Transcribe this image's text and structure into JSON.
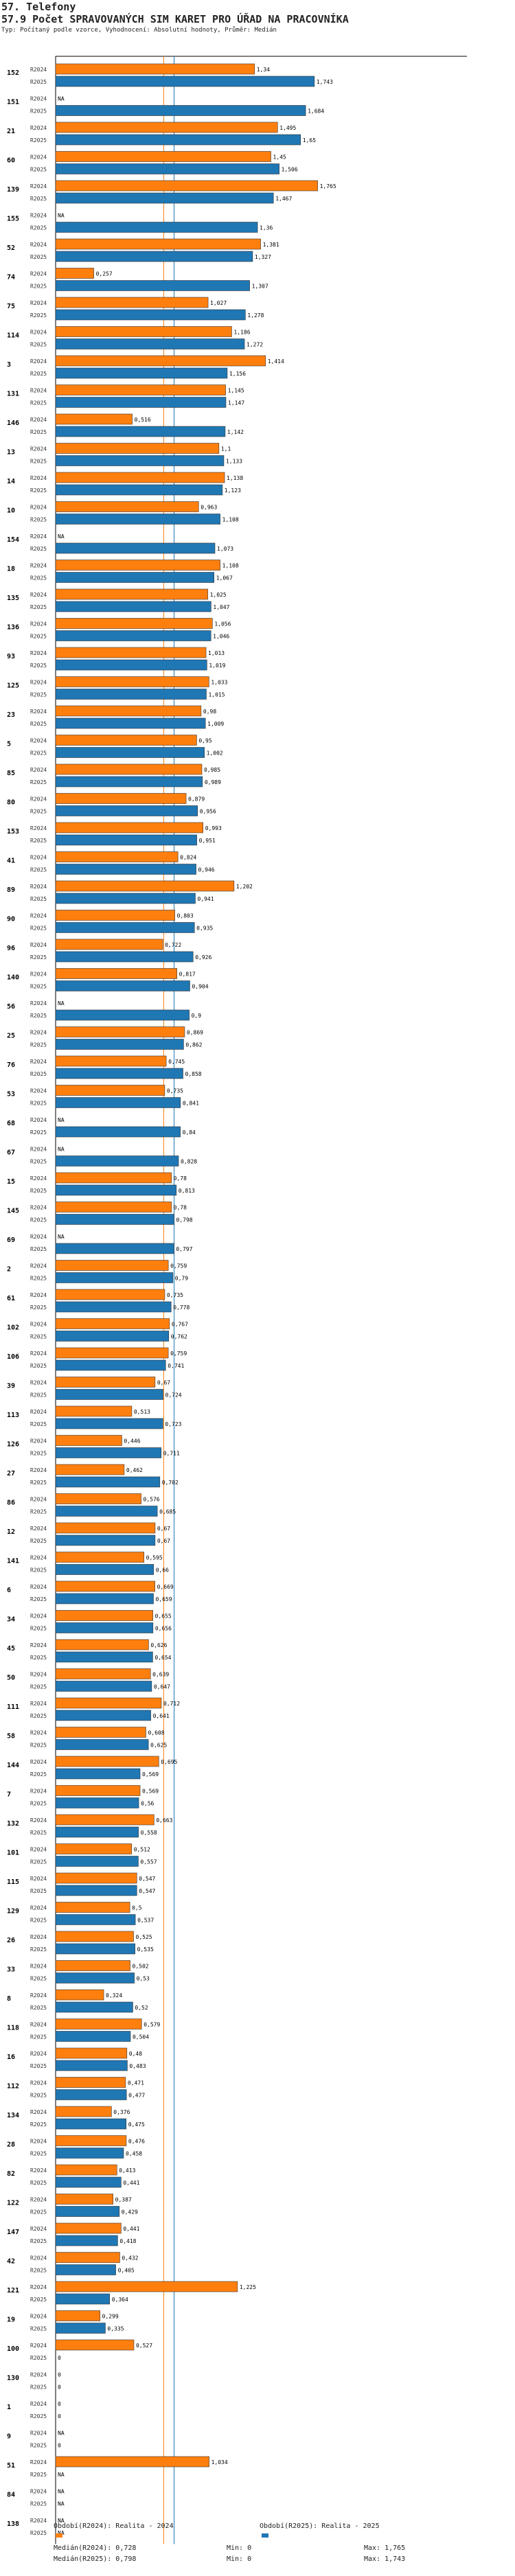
{
  "header": {
    "section": "57. Telefony",
    "title": "57.9 Počet SPRAVOVANÝCH SIM KARET PRO ÚŘAD NA PRACOVNÍKA",
    "subtitle": "Typ: Počítaný podle vzorce, Vyhodnocení: Absolutní hodnoty, Průměr: Medián"
  },
  "colors": {
    "r2024": "#ff7f0e",
    "r2025": "#1f77b4",
    "median2024": "#ff7f0e",
    "median2025": "#1f77b4"
  },
  "chart_data": {
    "type": "bar",
    "orientation": "horizontal",
    "na_label": "NA",
    "xlim": [
      0,
      1.85
    ],
    "series_labels": [
      "R2024",
      "R2025"
    ],
    "medians": {
      "r2024": 0.728,
      "r2025": 0.798
    },
    "rows": [
      {
        "id": "152",
        "r2024": 1.34,
        "r2025": 1.743
      },
      {
        "id": "151",
        "r2024": null,
        "r2025": 1.684
      },
      {
        "id": "21",
        "r2024": 1.495,
        "r2025": 1.65
      },
      {
        "id": "60",
        "r2024": 1.45,
        "r2025": 1.506
      },
      {
        "id": "139",
        "r2024": 1.765,
        "r2025": 1.467
      },
      {
        "id": "155",
        "r2024": null,
        "r2025": 1.36
      },
      {
        "id": "52",
        "r2024": 1.381,
        "r2025": 1.327
      },
      {
        "id": "74",
        "r2024": 0.257,
        "r2025": 1.307
      },
      {
        "id": "75",
        "r2024": 1.027,
        "r2025": 1.278
      },
      {
        "id": "114",
        "r2024": 1.186,
        "r2025": 1.272
      },
      {
        "id": "3",
        "r2024": 1.414,
        "r2025": 1.156
      },
      {
        "id": "131",
        "r2024": 1.145,
        "r2025": 1.147
      },
      {
        "id": "146",
        "r2024": 0.516,
        "r2025": 1.142
      },
      {
        "id": "13",
        "r2024": 1.1,
        "r2025": 1.133
      },
      {
        "id": "14",
        "r2024": 1.138,
        "r2025": 1.123
      },
      {
        "id": "10",
        "r2024": 0.963,
        "r2025": 1.108
      },
      {
        "id": "154",
        "r2024": null,
        "r2025": 1.073
      },
      {
        "id": "18",
        "r2024": 1.108,
        "r2025": 1.067
      },
      {
        "id": "135",
        "r2024": 1.025,
        "r2025": 1.047
      },
      {
        "id": "136",
        "r2024": 1.056,
        "r2025": 1.046
      },
      {
        "id": "93",
        "r2024": 1.013,
        "r2025": 1.019
      },
      {
        "id": "125",
        "r2024": 1.033,
        "r2025": 1.015
      },
      {
        "id": "23",
        "r2024": 0.98,
        "r2025": 1.009
      },
      {
        "id": "5",
        "r2024": 0.95,
        "r2025": 1.002
      },
      {
        "id": "85",
        "r2024": 0.985,
        "r2025": 0.989
      },
      {
        "id": "80",
        "r2024": 0.879,
        "r2025": 0.956
      },
      {
        "id": "153",
        "r2024": 0.993,
        "r2025": 0.951
      },
      {
        "id": "41",
        "r2024": 0.824,
        "r2025": 0.946
      },
      {
        "id": "89",
        "r2024": 1.202,
        "r2025": 0.941
      },
      {
        "id": "90",
        "r2024": 0.803,
        "r2025": 0.935
      },
      {
        "id": "96",
        "r2024": 0.722,
        "r2025": 0.926
      },
      {
        "id": "140",
        "r2024": 0.817,
        "r2025": 0.904
      },
      {
        "id": "56",
        "r2024": null,
        "r2025": 0.9
      },
      {
        "id": "25",
        "r2024": 0.869,
        "r2025": 0.862
      },
      {
        "id": "76",
        "r2024": 0.745,
        "r2025": 0.858
      },
      {
        "id": "53",
        "r2024": 0.735,
        "r2025": 0.841
      },
      {
        "id": "68",
        "r2024": null,
        "r2025": 0.84
      },
      {
        "id": "67",
        "r2024": null,
        "r2025": 0.828
      },
      {
        "id": "15",
        "r2024": 0.78,
        "r2025": 0.813
      },
      {
        "id": "145",
        "r2024": 0.78,
        "r2025": 0.798
      },
      {
        "id": "69",
        "r2024": null,
        "r2025": 0.797
      },
      {
        "id": "2",
        "r2024": 0.759,
        "r2025": 0.79
      },
      {
        "id": "61",
        "r2024": 0.735,
        "r2025": 0.778
      },
      {
        "id": "102",
        "r2024": 0.767,
        "r2025": 0.762
      },
      {
        "id": "106",
        "r2024": 0.759,
        "r2025": 0.741
      },
      {
        "id": "39",
        "r2024": 0.67,
        "r2025": 0.724
      },
      {
        "id": "113",
        "r2024": 0.513,
        "r2025": 0.723
      },
      {
        "id": "126",
        "r2024": 0.446,
        "r2025": 0.711
      },
      {
        "id": "27",
        "r2024": 0.462,
        "r2025": 0.702
      },
      {
        "id": "86",
        "r2024": 0.576,
        "r2025": 0.685
      },
      {
        "id": "12",
        "r2024": 0.67,
        "r2025": 0.67
      },
      {
        "id": "141",
        "r2024": 0.595,
        "r2025": 0.66
      },
      {
        "id": "6",
        "r2024": 0.669,
        "r2025": 0.659
      },
      {
        "id": "34",
        "r2024": 0.655,
        "r2025": 0.656
      },
      {
        "id": "45",
        "r2024": 0.626,
        "r2025": 0.654
      },
      {
        "id": "50",
        "r2024": 0.639,
        "r2025": 0.647
      },
      {
        "id": "111",
        "r2024": 0.712,
        "r2025": 0.641
      },
      {
        "id": "58",
        "r2024": 0.608,
        "r2025": 0.625
      },
      {
        "id": "144",
        "r2024": 0.695,
        "r2025": 0.569
      },
      {
        "id": "7",
        "r2024": 0.569,
        "r2025": 0.56
      },
      {
        "id": "132",
        "r2024": 0.663,
        "r2025": 0.558
      },
      {
        "id": "101",
        "r2024": 0.512,
        "r2025": 0.557
      },
      {
        "id": "115",
        "r2024": 0.547,
        "r2025": 0.547
      },
      {
        "id": "129",
        "r2024": 0.5,
        "r2025": 0.537
      },
      {
        "id": "26",
        "r2024": 0.525,
        "r2025": 0.535
      },
      {
        "id": "33",
        "r2024": 0.502,
        "r2025": 0.53
      },
      {
        "id": "8",
        "r2024": 0.324,
        "r2025": 0.52
      },
      {
        "id": "118",
        "r2024": 0.579,
        "r2025": 0.504
      },
      {
        "id": "16",
        "r2024": 0.48,
        "r2025": 0.483
      },
      {
        "id": "112",
        "r2024": 0.471,
        "r2025": 0.477
      },
      {
        "id": "134",
        "r2024": 0.376,
        "r2025": 0.475
      },
      {
        "id": "28",
        "r2024": 0.476,
        "r2025": 0.458
      },
      {
        "id": "82",
        "r2024": 0.413,
        "r2025": 0.441
      },
      {
        "id": "122",
        "r2024": 0.387,
        "r2025": 0.429
      },
      {
        "id": "147",
        "r2024": 0.441,
        "r2025": 0.418
      },
      {
        "id": "42",
        "r2024": 0.432,
        "r2025": 0.405
      },
      {
        "id": "121",
        "r2024": 1.225,
        "r2025": 0.364
      },
      {
        "id": "19",
        "r2024": 0.299,
        "r2025": 0.335
      },
      {
        "id": "100",
        "r2024": 0.527,
        "r2025": 0
      },
      {
        "id": "130",
        "r2024": 0,
        "r2025": 0
      },
      {
        "id": "1",
        "r2024": 0,
        "r2025": 0
      },
      {
        "id": "9",
        "r2024": null,
        "r2025": 0
      },
      {
        "id": "51",
        "r2024": 1.034,
        "r2025": null
      },
      {
        "id": "84",
        "r2024": null,
        "r2025": null
      },
      {
        "id": "138",
        "r2024": null,
        "r2025": null
      }
    ]
  },
  "footer": {
    "legend_2024": "Období(R2024): Realita - 2024",
    "legend_2025": "Období(R2025): Realita - 2025",
    "median_2024": "Medián(R2024): 0,728",
    "min_2024": "Min: 0",
    "max_2024": "Max: 1,765",
    "median_2025": "Medián(R2025): 0,798",
    "min_2025": "Min: 0",
    "max_2025": "Max: 1,743"
  }
}
